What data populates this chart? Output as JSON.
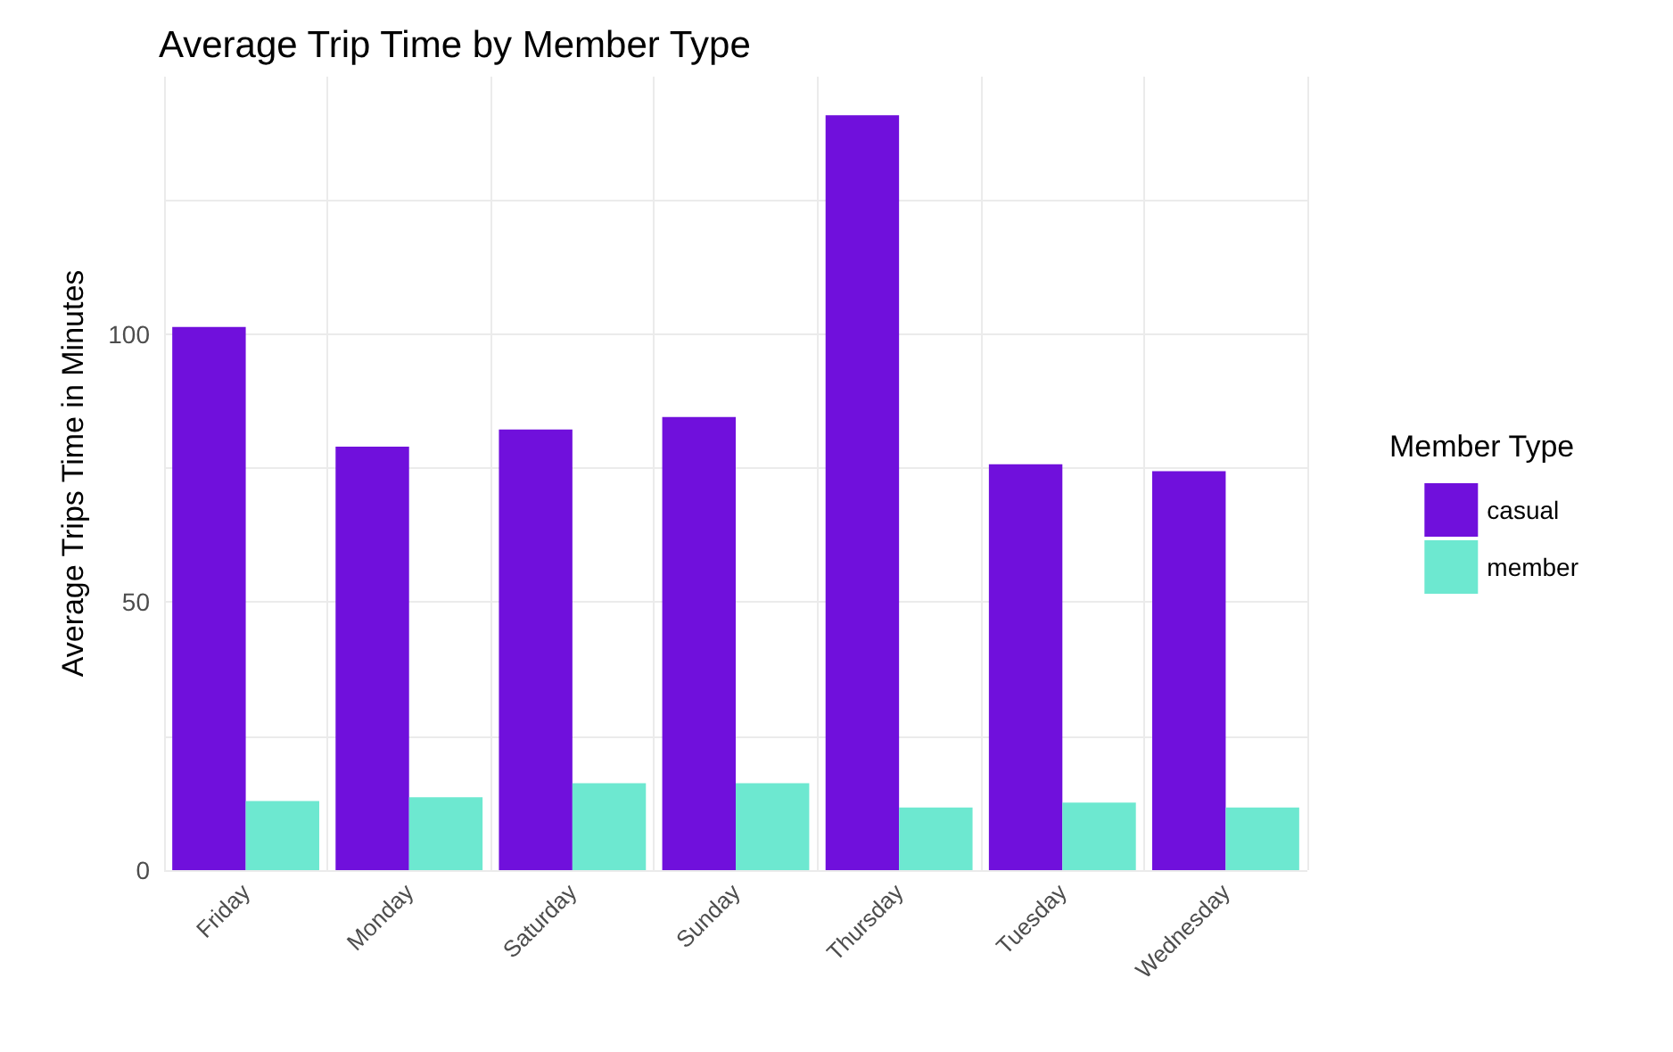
{
  "chart_data": {
    "type": "bar",
    "title": "Average Trip Time by Member Type",
    "ylabel": "Average Trips Time in Minutes",
    "legend_title": "Member Type",
    "categories": [
      "Friday",
      "Monday",
      "Saturday",
      "Sunday",
      "Thursday",
      "Tuesday",
      "Wednesday"
    ],
    "series": [
      {
        "name": "casual",
        "color": "#7010dc",
        "values": [
          101.3,
          79.0,
          82.2,
          84.5,
          140.8,
          75.7,
          74.4
        ]
      },
      {
        "name": "member",
        "color": "#6de8d0",
        "values": [
          12.9,
          13.6,
          16.2,
          16.2,
          11.7,
          12.6,
          11.7
        ]
      }
    ],
    "ylim": [
      0,
      148
    ],
    "yticks": [
      0,
      {
        "value": 25,
        "label": null
      },
      50,
      {
        "value": 75,
        "label": null
      },
      100,
      {
        "value": 125,
        "label": null
      }
    ],
    "grid": true,
    "legend": "right"
  }
}
